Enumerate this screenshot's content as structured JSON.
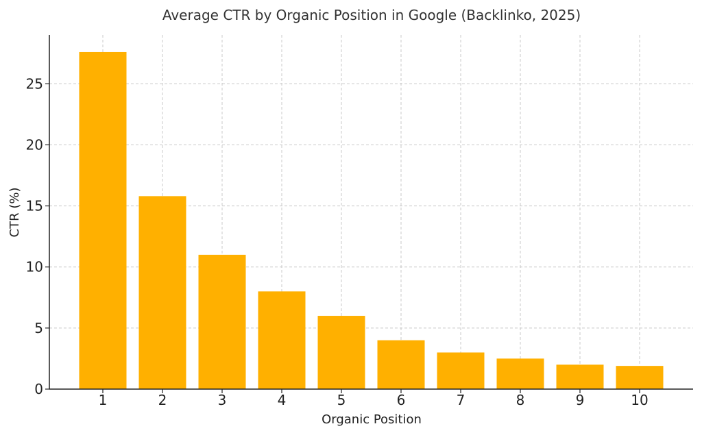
{
  "chart_data": {
    "type": "bar",
    "title": "Average CTR by Organic Position in Google (Backlinko, 2025)",
    "xlabel": "Organic Position",
    "ylabel": "CTR (%)",
    "categories": [
      "1",
      "2",
      "3",
      "4",
      "5",
      "6",
      "7",
      "8",
      "9",
      "10"
    ],
    "values": [
      27.6,
      15.8,
      11.0,
      8.0,
      6.0,
      4.0,
      3.0,
      2.5,
      2.0,
      1.9
    ],
    "ylim": [
      0,
      29
    ],
    "yticks": [
      "0",
      "5",
      "10",
      "15",
      "20",
      "25"
    ],
    "grid": true,
    "bar_color": "#ffb000"
  }
}
